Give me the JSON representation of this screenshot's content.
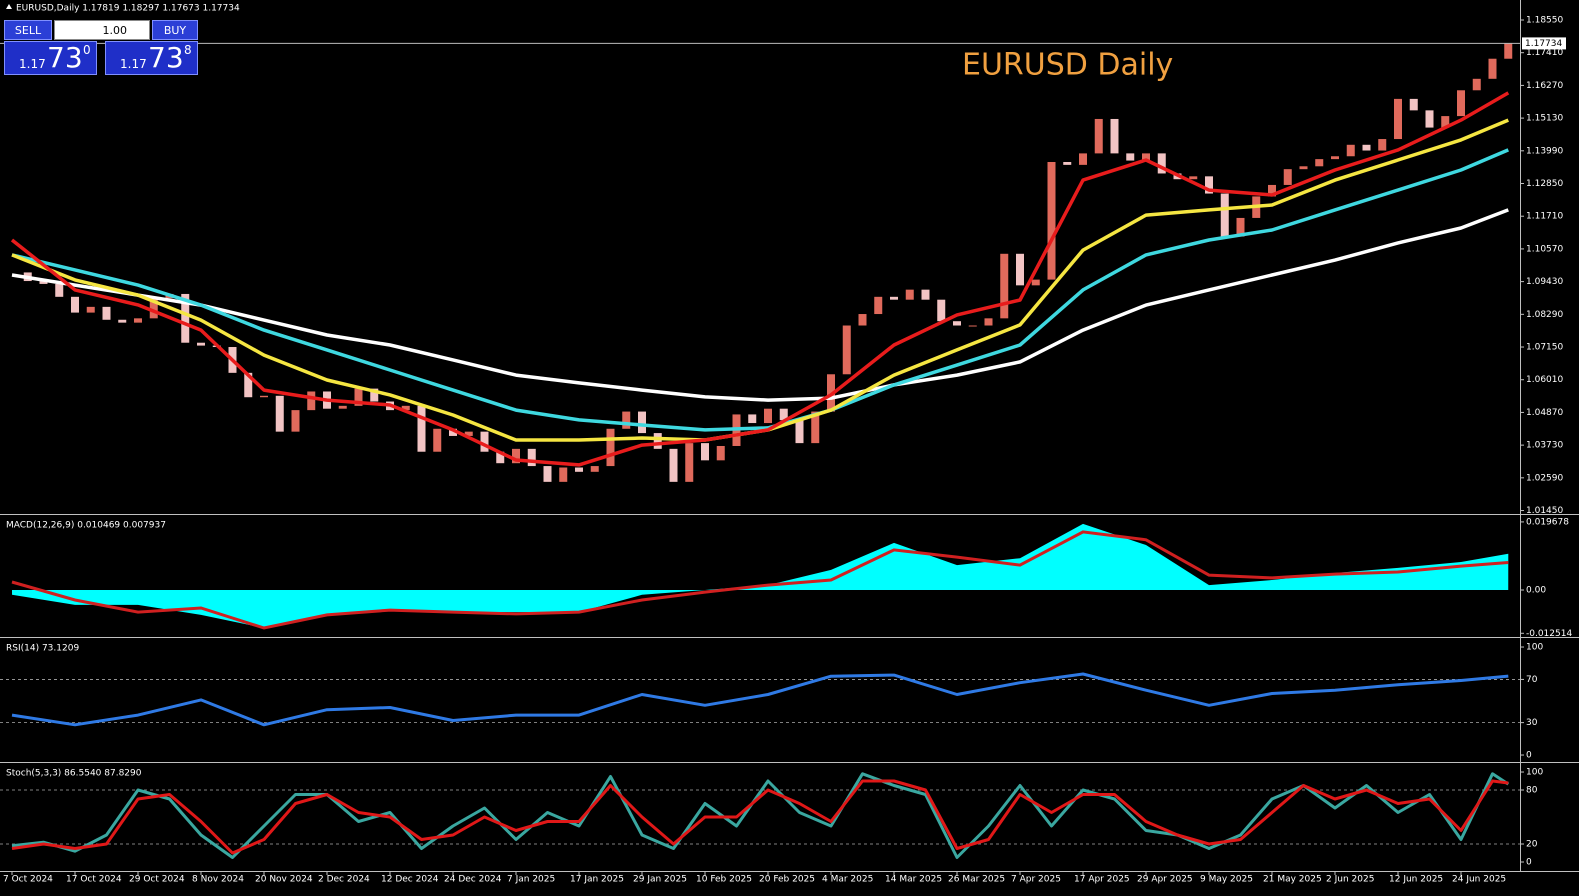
{
  "toolbar": {
    "sell": "SELL",
    "lot": "1.00",
    "buy": "BUY",
    "bid": {
      "big": "1.17",
      "pips": "73",
      "frac": "0"
    },
    "ask": {
      "big": "1.17",
      "pips": "73",
      "frac": "8"
    }
  },
  "chart_data": [
    {
      "type": "candlestick",
      "title": "EURUSD Daily",
      "header": "EURUSD,Daily  1.17819 1.18297 1.17673 1.17734",
      "up_color": "#e06a5c",
      "down_color": "#f2c4c4",
      "categories": [
        "7 Oct 2024",
        null,
        null,
        null,
        "17 Oct 2024",
        null,
        null,
        null,
        "29 Oct 2024",
        null,
        null,
        null,
        "8 Nov 2024",
        null,
        null,
        null,
        "20 Nov 2024",
        null,
        null,
        null,
        "2 Dec 2024",
        null,
        null,
        null,
        "12 Dec 2024",
        null,
        null,
        null,
        "24 Dec 2024",
        null,
        null,
        null,
        "7 Jan 2025",
        null,
        null,
        null,
        "17 Jan 2025",
        null,
        null,
        null,
        "29 Jan 2025",
        null,
        null,
        null,
        "10 Feb 2025",
        null,
        null,
        null,
        "20 Feb 2025",
        null,
        null,
        null,
        "4 Mar 2025",
        null,
        null,
        null,
        "14 Mar 2025",
        null,
        null,
        null,
        "26 Mar 2025",
        null,
        null,
        null,
        "7 Apr 2025",
        null,
        null,
        null,
        "17 Apr 2025",
        null,
        null,
        null,
        "29 Apr 2025",
        null,
        null,
        null,
        "9 May 2025",
        null,
        null,
        null,
        "21 May 2025",
        null,
        null,
        null,
        "2 Jun 2025",
        null,
        null,
        null,
        "12 Jun 2025",
        null,
        null,
        null,
        "24 Jun 2025",
        null,
        null,
        null
      ],
      "close": [
        1.0975,
        1.0945,
        1.0935,
        1.089,
        1.0835,
        1.0855,
        1.081,
        1.08,
        1.0815,
        1.0885,
        1.09,
        1.073,
        1.072,
        1.0715,
        1.0625,
        1.054,
        1.0545,
        1.042,
        1.0495,
        1.056,
        1.05,
        1.051,
        1.057,
        1.0525,
        1.0495,
        1.051,
        1.035,
        1.043,
        1.0405,
        1.042,
        1.035,
        1.031,
        1.036,
        1.03,
        1.0245,
        1.0295,
        1.028,
        1.03,
        1.043,
        1.049,
        1.0415,
        1.036,
        1.0245,
        1.038,
        1.032,
        1.037,
        1.048,
        1.045,
        1.05,
        1.046,
        1.038,
        1.049,
        1.062,
        1.079,
        1.083,
        1.089,
        1.088,
        1.0915,
        1.088,
        1.0805,
        1.079,
        1.079,
        1.0815,
        1.104,
        1.093,
        1.095,
        1.136,
        1.135,
        1.139,
        1.151,
        1.139,
        1.1365,
        1.139,
        1.132,
        1.13,
        1.131,
        1.125,
        1.11,
        1.1165,
        1.124,
        1.128,
        1.1335,
        1.1345,
        1.137,
        1.138,
        1.142,
        1.14,
        1.144,
        1.158,
        1.154,
        1.148,
        1.152,
        1.161,
        1.165,
        1.172,
        1.17734
      ],
      "current_price": 1.17734,
      "ma": {
        "x": [
          0,
          4,
          8,
          12,
          16,
          20,
          24,
          28,
          32,
          36,
          40,
          44,
          48,
          52,
          56,
          60,
          64,
          68,
          72,
          76,
          80,
          84,
          88,
          92,
          95
        ],
        "series": [
          {
            "color": "#ffffff",
            "values": [
              1.0966,
              1.0931,
              1.0896,
              1.0861,
              1.0809,
              1.0757,
              1.0722,
              1.067,
              1.0617,
              1.059,
              1.0565,
              1.0541,
              1.053,
              1.0537,
              1.0583,
              1.0617,
              1.0663,
              1.0774,
              1.0861,
              1.0914,
              1.0966,
              1.1018,
              1.1078,
              1.113,
              1.1193
            ]
          },
          {
            "color": "#3fd8e0",
            "values": [
              1.1036,
              1.0984,
              1.0931,
              1.0861,
              1.0774,
              1.0705,
              1.0635,
              1.0565,
              1.0495,
              1.0461,
              1.0443,
              1.0426,
              1.0433,
              1.0495,
              1.0583,
              1.0652,
              1.0722,
              1.0914,
              1.1036,
              1.1088,
              1.1123,
              1.1193,
              1.1262,
              1.1332,
              1.1402
            ]
          },
          {
            "color": "#f5e642",
            "values": [
              1.1036,
              1.0949,
              1.0896,
              1.0809,
              1.0687,
              1.06,
              1.0548,
              1.0478,
              1.0391,
              1.0391,
              1.0398,
              1.0391,
              1.0426,
              1.0495,
              1.0617,
              1.0705,
              1.0792,
              1.1053,
              1.1175,
              1.1193,
              1.121,
              1.1297,
              1.1367,
              1.1437,
              1.1506
            ]
          },
          {
            "color": "#e81c1c",
            "values": [
              1.1088,
              1.0914,
              1.0862,
              1.0774,
              1.0565,
              1.053,
              1.0513,
              1.0426,
              1.0321,
              1.0304,
              1.0373,
              1.0391,
              1.0426,
              1.0548,
              1.0722,
              1.0827,
              1.0879,
              1.1297,
              1.1367,
              1.1262,
              1.1245,
              1.1332,
              1.1402,
              1.1506,
              1.1601
            ]
          }
        ]
      },
      "ylim": [
        1.01364,
        1.18794
      ],
      "yticks": [
        {
          "value": 1.1855,
          "label": "1.18550"
        },
        {
          "value": 1.1741,
          "label": "1.17410"
        },
        {
          "value": 1.1627,
          "label": "1.16270"
        },
        {
          "value": 1.1513,
          "label": "1.15130"
        },
        {
          "value": 1.1399,
          "label": "1.13990"
        },
        {
          "value": 1.1285,
          "label": "1.12850"
        },
        {
          "value": 1.1171,
          "label": "1.11710"
        },
        {
          "value": 1.1057,
          "label": "1.10570"
        },
        {
          "value": 1.0943,
          "label": "1.09430"
        },
        {
          "value": 1.0829,
          "label": "1.08290"
        },
        {
          "value": 1.0715,
          "label": "1.07150"
        },
        {
          "value": 1.0601,
          "label": "1.06010"
        },
        {
          "value": 1.0487,
          "label": "1.04870"
        },
        {
          "value": 1.0373,
          "label": "1.03730"
        },
        {
          "value": 1.0259,
          "label": "1.02590"
        },
        {
          "value": 1.0145,
          "label": "1.01450"
        }
      ]
    },
    {
      "type": "macd",
      "label": "MACD(12,26,9) 0.010469 0.007937",
      "x": [
        0,
        4,
        8,
        12,
        16,
        20,
        24,
        28,
        32,
        36,
        40,
        44,
        48,
        52,
        56,
        60,
        64,
        68,
        72,
        76,
        80,
        84,
        88,
        92,
        95
      ],
      "series": [
        {
          "color": "#00ffff",
          "values": [
            -0.0014,
            -0.0043,
            -0.0043,
            -0.0072,
            -0.011,
            -0.0072,
            -0.0058,
            -0.0064,
            -0.0064,
            -0.0064,
            -0.0014,
            0,
            0.0014,
            0.0058,
            0.0136,
            0.0072,
            0.0092,
            0.0191,
            0.013,
            0.0014,
            0.0029,
            0.0049,
            0.0064,
            0.0081,
            0.010469
          ]
        },
        {
          "color": "#d02020",
          "values": [
            0.0023,
            -0.0029,
            -0.0064,
            -0.0052,
            -0.011,
            -0.0072,
            -0.0058,
            -0.0064,
            -0.0069,
            -0.0064,
            -0.0029,
            -0.0006,
            0.0014,
            0.0029,
            0.0116,
            0.0095,
            0.0072,
            0.0168,
            0.0145,
            0.0043,
            0.0035,
            0.0046,
            0.0052,
            0.0069,
            0.007937
          ]
        }
      ],
      "ylim": [
        -0.0133,
        0.0211
      ],
      "yticks": [
        0.019678,
        {
          "value": 0,
          "label": "0.00"
        },
        -0.012514
      ]
    },
    {
      "type": "line",
      "label": "RSI(14) 73.1209",
      "x": [
        0,
        4,
        8,
        12,
        16,
        20,
        24,
        28,
        32,
        36,
        40,
        44,
        48,
        52,
        56,
        60,
        64,
        68,
        72,
        76,
        80,
        84,
        88,
        92,
        95
      ],
      "series": [
        {
          "color": "#2f7ae5",
          "values": [
            37,
            28,
            37,
            51,
            28,
            42,
            44,
            32,
            37,
            37,
            56,
            46,
            56,
            73,
            74,
            56,
            67,
            75,
            60,
            46,
            57,
            60,
            65,
            69,
            73.1209
          ]
        }
      ],
      "ylim": [
        -4.6,
        106.5
      ],
      "yticks": [
        0,
        30,
        70,
        100
      ],
      "levels": [
        30,
        70
      ]
    },
    {
      "type": "line",
      "label": "Stoch(5,3,3) 86.5540 87.8290",
      "x": [
        0,
        2,
        4,
        6,
        8,
        10,
        12,
        14,
        16,
        18,
        20,
        22,
        24,
        26,
        28,
        30,
        32,
        34,
        36,
        38,
        40,
        42,
        44,
        46,
        48,
        50,
        52,
        54,
        56,
        58,
        60,
        62,
        64,
        66,
        68,
        70,
        72,
        74,
        76,
        78,
        80,
        82,
        84,
        86,
        88,
        90,
        92,
        94,
        95
      ],
      "series": [
        {
          "color": "#3aa7a0",
          "values": [
            18,
            22,
            12,
            30,
            80,
            70,
            30,
            5,
            40,
            75,
            75,
            45,
            55,
            15,
            40,
            60,
            25,
            55,
            40,
            95,
            30,
            15,
            65,
            40,
            90,
            55,
            40,
            98,
            85,
            75,
            5,
            40,
            85,
            40,
            80,
            70,
            35,
            30,
            15,
            30,
            70,
            85,
            60,
            85,
            55,
            75,
            25,
            98,
            86.554
          ]
        },
        {
          "color": "#e01818",
          "values": [
            15,
            20,
            15,
            20,
            70,
            75,
            45,
            10,
            25,
            65,
            75,
            55,
            50,
            25,
            30,
            50,
            35,
            45,
            45,
            85,
            50,
            20,
            50,
            50,
            80,
            65,
            45,
            90,
            90,
            80,
            15,
            25,
            75,
            55,
            75,
            75,
            45,
            30,
            20,
            25,
            55,
            85,
            70,
            80,
            65,
            70,
            35,
            90,
            87.829
          ]
        }
      ],
      "ylim": [
        -8.9,
        107.8
      ],
      "yticks": [
        0,
        20,
        80,
        100
      ],
      "levels": [
        20,
        80
      ]
    }
  ]
}
